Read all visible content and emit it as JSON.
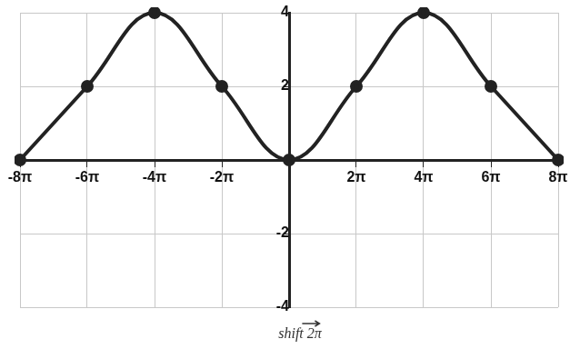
{
  "chart_data": {
    "type": "line",
    "x": [
      -25.133,
      -18.85,
      -12.566,
      -6.283,
      0,
      6.283,
      12.566,
      18.85,
      25.133
    ],
    "values": [
      0,
      2,
      4,
      2,
      0,
      2,
      4,
      2,
      0
    ],
    "color": "#222222",
    "marker": "circle",
    "line_style": "solid",
    "xlim": [
      -25.133,
      25.133
    ],
    "xticks": [
      {
        "value": -25.133,
        "label": "-8π"
      },
      {
        "value": -18.85,
        "label": "-6π"
      },
      {
        "value": -12.566,
        "label": "-4π"
      },
      {
        "value": -6.283,
        "label": "-2π"
      },
      {
        "value": 6.283,
        "label": "2π"
      },
      {
        "value": 12.566,
        "label": "4π"
      },
      {
        "value": 18.85,
        "label": "6π"
      },
      {
        "value": 25.133,
        "label": "8π"
      }
    ],
    "ylim": [
      -4,
      4
    ],
    "yticks": [
      -4,
      -2,
      2,
      4
    ],
    "grid": true,
    "annotations": [
      "shift 2π"
    ]
  }
}
